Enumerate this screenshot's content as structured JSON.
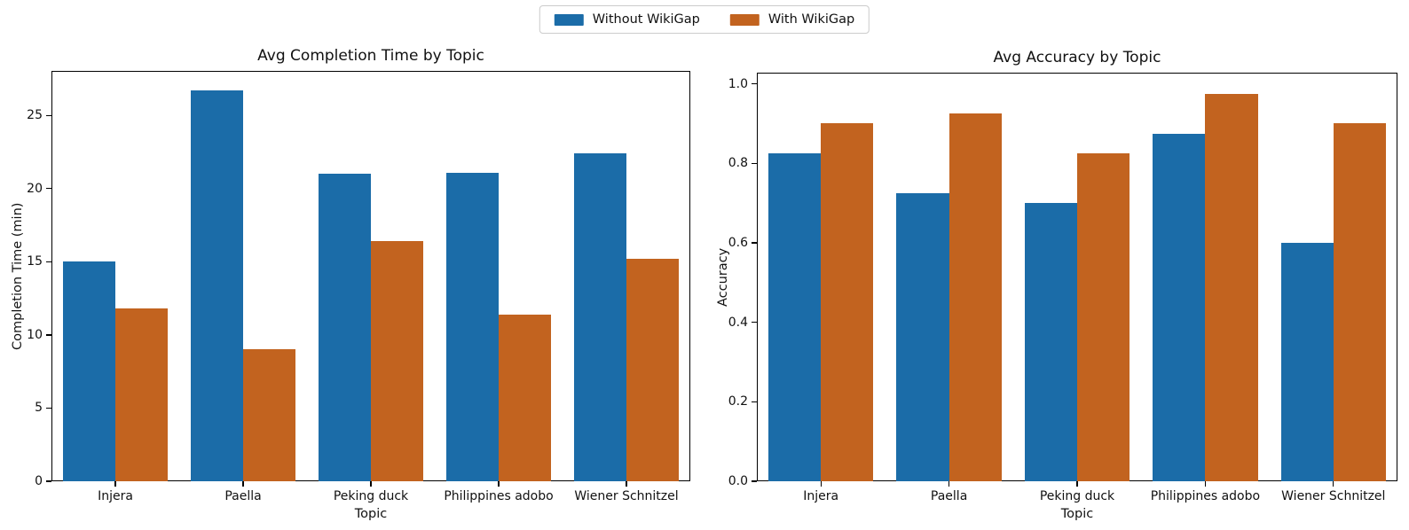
{
  "figure": {
    "background": "#ffffff"
  },
  "legend": {
    "items": [
      {
        "label": "Without WikiGap",
        "color": "#1b6ca8"
      },
      {
        "label": "With WikiGap",
        "color": "#c2631f"
      }
    ]
  },
  "chart_data": [
    {
      "type": "bar",
      "title": "Avg Completion Time by Topic",
      "xlabel": "Topic",
      "ylabel": "Completion Time (min)",
      "categories": [
        "Injera",
        "Paella",
        "Peking duck",
        "Philippines adobo",
        "Wiener Schnitzel"
      ],
      "series": [
        {
          "name": "Without WikiGap",
          "values": [
            15.0,
            26.7,
            21.0,
            21.1,
            22.4
          ]
        },
        {
          "name": "With WikiGap",
          "values": [
            11.8,
            9.0,
            16.4,
            11.4,
            15.2
          ]
        }
      ],
      "ylim": [
        0,
        28.05
      ],
      "yticks": [
        0,
        5,
        10,
        15,
        20,
        25
      ],
      "ytick_labels": [
        "0",
        "5",
        "10",
        "15",
        "20",
        "25"
      ],
      "grid": false,
      "legend_position": "figure-top-center"
    },
    {
      "type": "bar",
      "title": "Avg Accuracy by Topic",
      "xlabel": "Topic",
      "ylabel": "Accuracy",
      "categories": [
        "Injera",
        "Paella",
        "Peking duck",
        "Philippines adobo",
        "Wiener Schnitzel"
      ],
      "series": [
        {
          "name": "Without WikiGap",
          "values": [
            0.825,
            0.725,
            0.7,
            0.875,
            0.6
          ]
        },
        {
          "name": "With WikiGap",
          "values": [
            0.9,
            0.925,
            0.825,
            0.975,
            0.9
          ]
        }
      ],
      "ylim": [
        0,
        1.028
      ],
      "yticks": [
        0.0,
        0.2,
        0.4,
        0.6,
        0.8,
        1.0
      ],
      "ytick_labels": [
        "0.0",
        "0.2",
        "0.4",
        "0.6",
        "0.8",
        "1.0"
      ],
      "grid": false,
      "legend_position": "figure-top-center"
    }
  ]
}
